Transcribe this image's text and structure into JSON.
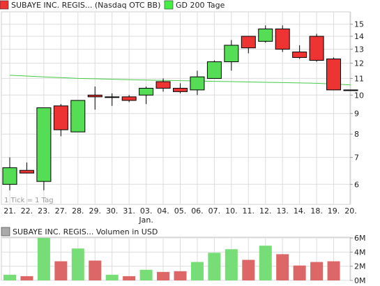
{
  "legend": {
    "series_label": "SUBAYE INC. REGIS... (Nasdaq OTC BB)",
    "ma_label": "GD 200 Tage",
    "volume_label": "SUBAYE INC. REGIS... Volumen in USD"
  },
  "colors": {
    "up": "#55dd55",
    "down": "#ee3333",
    "ma": "#44cc44",
    "vol_up": "#77dd77",
    "vol_down": "#dd6666",
    "grid": "#dddddd",
    "candle_border": "#000000"
  },
  "note": "1 Tick = 1 Tag",
  "chart_data": {
    "type": "candlestick",
    "price_scale": "log",
    "price_ticks": [
      6,
      7,
      8,
      9,
      10,
      11,
      12,
      13,
      14,
      15
    ],
    "price_range": [
      5.35,
      16.1
    ],
    "x_labels": [
      "21.",
      "22.",
      "23.",
      "27.",
      "28.",
      "29.",
      "30.",
      "31.",
      "03.",
      "04.",
      "05.",
      "06.",
      "07.",
      "10.",
      "11.",
      "12.",
      "13.",
      "14.",
      "18.",
      "19.",
      "20."
    ],
    "month_label": "Jan.",
    "month_label_index": 8,
    "candles": [
      {
        "open": 6.0,
        "high": 7.0,
        "low": 5.8,
        "close": 6.6
      },
      {
        "open": 6.5,
        "high": 6.8,
        "low": 6.4,
        "close": 6.4
      },
      {
        "open": 6.1,
        "high": 9.3,
        "low": 5.8,
        "close": 9.3
      },
      {
        "open": 9.4,
        "high": 9.5,
        "low": 7.9,
        "close": 8.2
      },
      {
        "open": 8.1,
        "high": 9.7,
        "low": 8.1,
        "close": 9.7
      },
      {
        "open": 10.0,
        "high": 10.5,
        "low": 9.2,
        "close": 9.9
      },
      {
        "open": 9.9,
        "high": 10.1,
        "low": 9.4,
        "close": 9.9
      },
      {
        "open": 9.9,
        "high": 10.0,
        "low": 9.6,
        "close": 9.7
      },
      {
        "open": 10.0,
        "high": 10.5,
        "low": 9.5,
        "close": 10.4
      },
      {
        "open": 10.8,
        "high": 11.0,
        "low": 10.2,
        "close": 10.4
      },
      {
        "open": 10.4,
        "high": 10.7,
        "low": 10.1,
        "close": 10.2
      },
      {
        "open": 10.3,
        "high": 11.5,
        "low": 10.0,
        "close": 11.1
      },
      {
        "open": 11.0,
        "high": 12.2,
        "low": 11.0,
        "close": 12.1
      },
      {
        "open": 12.1,
        "high": 13.7,
        "low": 11.5,
        "close": 13.3
      },
      {
        "open": 14.0,
        "high": 14.0,
        "low": 12.7,
        "close": 13.1
      },
      {
        "open": 13.6,
        "high": 14.9,
        "low": 13.5,
        "close": 14.6
      },
      {
        "open": 14.6,
        "high": 14.9,
        "low": 12.8,
        "close": 13.0
      },
      {
        "open": 12.8,
        "high": 13.3,
        "low": 12.3,
        "close": 12.4
      },
      {
        "open": 14.0,
        "high": 14.2,
        "low": 12.1,
        "close": 12.2
      },
      {
        "open": 12.3,
        "high": 12.4,
        "low": 10.3,
        "close": 10.3
      },
      {
        "open": 10.3,
        "high": 10.3,
        "low": 10.3,
        "close": 10.3
      }
    ],
    "ma200": [
      11.2,
      11.15,
      11.1,
      11.05,
      11.0,
      10.98,
      10.95,
      10.92,
      10.9,
      10.88,
      10.86,
      10.84,
      10.82,
      10.8,
      10.78,
      10.76,
      10.74,
      10.72,
      10.7,
      10.65,
      10.6
    ],
    "volume_unit": "USD",
    "volume_ticks": [
      "0M",
      "2M",
      "4M",
      "6M"
    ],
    "volume_tick_values": [
      0,
      2,
      4,
      6
    ],
    "volume_max": 6.1,
    "volume_millions": [
      0.8,
      0.6,
      6.0,
      2.7,
      4.5,
      2.8,
      0.8,
      0.6,
      1.5,
      1.2,
      1.3,
      2.6,
      3.9,
      4.4,
      2.9,
      4.9,
      3.7,
      2.1,
      2.6,
      2.7,
      0
    ]
  }
}
